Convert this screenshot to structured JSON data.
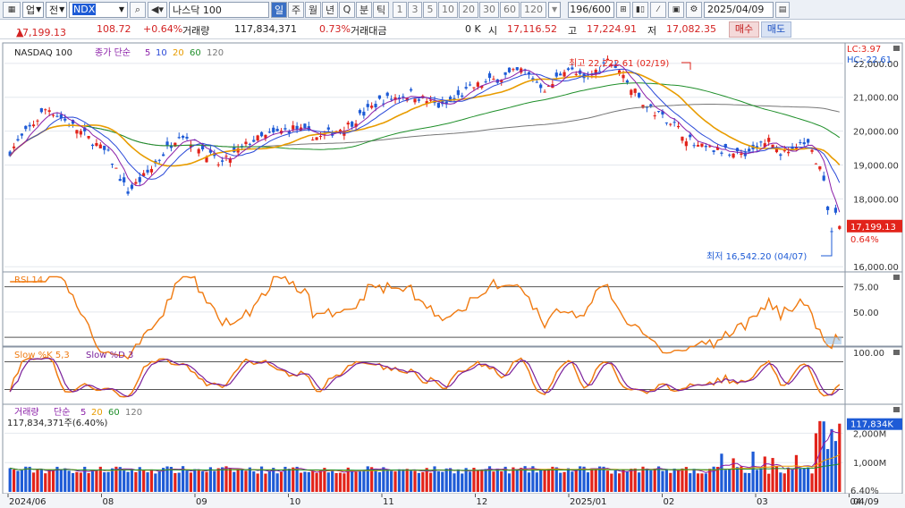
{
  "toolbar": {
    "market_sel": "업",
    "kind_sel": "전",
    "symbol_code": "NDX",
    "symbol_name": "나스닥 100",
    "periods": [
      "일",
      "주",
      "월",
      "년",
      "Q",
      "분",
      "틱"
    ],
    "intervals": [
      "1",
      "3",
      "5",
      "10",
      "20",
      "30",
      "60",
      "120"
    ],
    "count": "196/600",
    "date": "2025/04/09"
  },
  "quote": {
    "price": "17,199.13",
    "arrow": "▲",
    "change": "108.72",
    "change_pct": "+0.64%",
    "volume_label": "거래량",
    "volume": "117,834,371",
    "volume_pct": "0.73%",
    "amount_label": "거래대금",
    "amount": "0 K",
    "open_label": "시",
    "open": "17,116.52",
    "high_label": "고",
    "high": "17,224.91",
    "low_label": "저",
    "low": "17,082.35",
    "buy_label": "매수",
    "sell_label": "매도"
  },
  "colors": {
    "up": "#e2231a",
    "down": "#1e5bd6",
    "ma5": "#8b1fa8",
    "ma10": "#2a49d8",
    "ma20": "#e89c00",
    "ma60": "#1f8f2a",
    "ma120": "#777777",
    "rsi": "#f07a10",
    "slowk": "#f07a10",
    "slowd": "#7a1f9a"
  },
  "price_panel": {
    "title": "NASDAQ 100",
    "ma_label": "종가 단순",
    "ma_periods": [
      "5",
      "10",
      "20",
      "60",
      "120"
    ],
    "lc": "LC:3.97",
    "hc": "HC:-22.61",
    "y_labels": [
      "22,000.00",
      "21,000.00",
      "20,000.00",
      "19,000.00",
      "18,000.00",
      "16,000.00"
    ],
    "last_price": "17,199.13",
    "last_pct": "0.64%",
    "high_note": "최고 22,222.61 (02/19)",
    "low_note": "최저 16,542.20 (04/07)"
  },
  "rsi_panel": {
    "title": "RSI 14",
    "y_labels": [
      "75.00",
      "50.00"
    ]
  },
  "stoch_panel": {
    "title_k": "Slow %K 5,3",
    "title_d": "Slow %D 3",
    "y_labels": [
      "100.00"
    ]
  },
  "vol_panel": {
    "title": "거래량",
    "ma_label": "단순",
    "ma_periods": [
      "5",
      "20",
      "60",
      "120"
    ],
    "sub": "117,834,371주(6.40%)",
    "y_labels": [
      "2,000M",
      "1,000M"
    ],
    "last_vol": "117,834K",
    "last_pct": "6.40%"
  },
  "x_axis": {
    "labels": [
      "2024/06",
      "08",
      "09",
      "10",
      "11",
      "12",
      "2025/01",
      "02",
      "03",
      "04"
    ],
    "right_label": "04/09"
  }
}
